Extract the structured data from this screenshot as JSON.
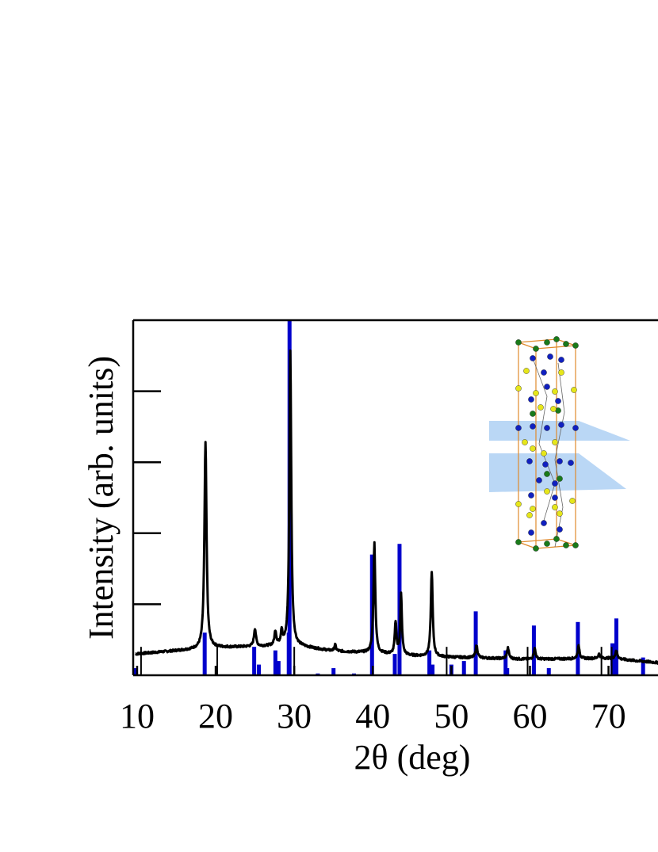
{
  "chart_data": {
    "type": "line",
    "xlabel": "2θ (deg)",
    "ylabel": "Intensity (arb. units)",
    "xlim": [
      9.5,
      76.5
    ],
    "ylim": [
      0,
      1.0
    ],
    "x_ticks": [
      10,
      20,
      30,
      40,
      50,
      60,
      70
    ],
    "x_tick_labels": [
      "10",
      "20",
      "30",
      "40",
      "50",
      "60",
      "70"
    ],
    "y_tick_labels_shown": false,
    "series": [
      {
        "style": "line",
        "color": "#000000",
        "baseline": [
          [
            9.8,
            0.06
          ],
          [
            20,
            0.078
          ],
          [
            30,
            0.084
          ],
          [
            35,
            0.068
          ],
          [
            40,
            0.063
          ],
          [
            45,
            0.055
          ],
          [
            50,
            0.051
          ],
          [
            60,
            0.045
          ],
          [
            70,
            0.048
          ],
          [
            76.5,
            0.035
          ]
        ],
        "peaks": [
          {
            "x": 18.7,
            "height": 0.58,
            "width": 0.32
          },
          {
            "x": 25.0,
            "height": 0.05,
            "width": 0.3
          },
          {
            "x": 27.6,
            "height": 0.04,
            "width": 0.28
          },
          {
            "x": 28.4,
            "height": 0.04,
            "width": 0.25
          },
          {
            "x": 29.5,
            "height": 0.83,
            "width": 0.28
          },
          {
            "x": 35.2,
            "height": 0.018,
            "width": 0.25
          },
          {
            "x": 40.2,
            "height": 0.31,
            "width": 0.28
          },
          {
            "x": 42.9,
            "height": 0.09,
            "width": 0.25
          },
          {
            "x": 43.6,
            "height": 0.17,
            "width": 0.25
          },
          {
            "x": 47.5,
            "height": 0.24,
            "width": 0.28
          },
          {
            "x": 53.2,
            "height": 0.035,
            "width": 0.3
          },
          {
            "x": 57.2,
            "height": 0.03,
            "width": 0.3
          },
          {
            "x": 60.6,
            "height": 0.03,
            "width": 0.3
          },
          {
            "x": 66.2,
            "height": 0.035,
            "width": 0.3
          },
          {
            "x": 68.8,
            "height": 0.012,
            "width": 0.3
          },
          {
            "x": 71.0,
            "height": 0.022,
            "width": 0.35
          }
        ]
      },
      {
        "style": "sticks",
        "color": "#0000cc",
        "x": [
          9.8,
          18.6,
          24.9,
          25.5,
          27.6,
          28.0,
          29.3,
          29.4,
          33.0,
          35.0,
          37.6,
          39.9,
          42.8,
          43.4,
          47.2,
          47.6,
          50.0,
          51.6,
          53.1,
          56.9,
          57.1,
          60.5,
          62.4,
          66.1,
          70.5,
          71.0,
          74.4
        ],
        "values": [
          0.02,
          0.12,
          0.08,
          0.03,
          0.07,
          0.04,
          0.12,
          1.0,
          0.005,
          0.02,
          0.005,
          0.34,
          0.06,
          0.37,
          0.07,
          0.03,
          0.03,
          0.04,
          0.18,
          0.07,
          0.02,
          0.14,
          0.02,
          0.15,
          0.09,
          0.16,
          0.05
        ]
      },
      {
        "style": "sticks",
        "color": "#000000",
        "x": [
          10.5,
          20.2,
          30.0,
          49.4,
          59.7,
          69.1,
          70.4
        ],
        "values": [
          0.08,
          0.08,
          0.08,
          0.08,
          0.08,
          0.08,
          0.08
        ]
      }
    ],
    "inset": {
      "type": "crystal-structure",
      "planes": 2
    }
  }
}
